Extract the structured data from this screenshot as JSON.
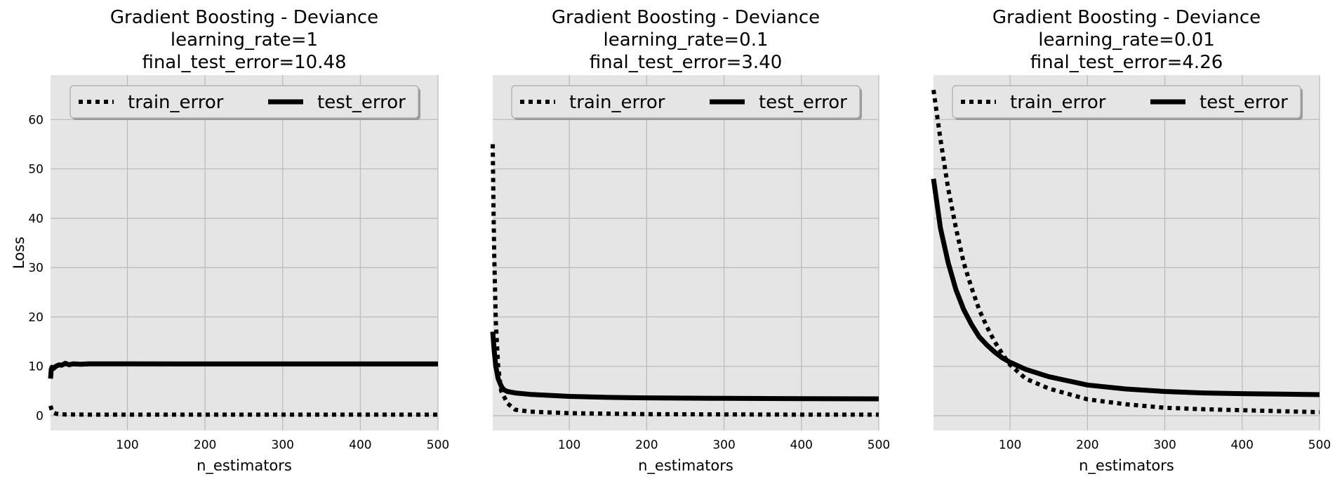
{
  "chart_data": [
    {
      "type": "line",
      "title": "Gradient Boosting - Deviance",
      "subtitle_lines": [
        "learning_rate=1",
        "final_test_error=10.48"
      ],
      "xlabel": "n_estimators",
      "ylabel": "Loss",
      "xlim": [
        1,
        500
      ],
      "ylim": [
        -3,
        69
      ],
      "xticks": [
        100,
        200,
        300,
        400,
        500
      ],
      "yticks": [
        0,
        10,
        20,
        30,
        40,
        50,
        60
      ],
      "grid": true,
      "legend": {
        "placement": "top-center",
        "entries": [
          "train_error",
          "test_error"
        ]
      },
      "series": [
        {
          "name": "train_error",
          "style": "dotted",
          "x": [
            1,
            2,
            3,
            5,
            8,
            12,
            20,
            50,
            100,
            200,
            300,
            400,
            500
          ],
          "y": [
            2.0,
            1.4,
            0.9,
            0.6,
            0.4,
            0.3,
            0.25,
            0.2,
            0.2,
            0.2,
            0.2,
            0.2,
            0.2
          ]
        },
        {
          "name": "test_error",
          "style": "solid",
          "x": [
            1,
            2,
            3,
            5,
            8,
            12,
            15,
            20,
            25,
            30,
            40,
            50,
            60,
            100,
            200,
            300,
            400,
            500
          ],
          "y": [
            7.5,
            9.5,
            9.8,
            9.6,
            10.0,
            10.3,
            10.2,
            10.6,
            10.3,
            10.5,
            10.4,
            10.5,
            10.5,
            10.5,
            10.48,
            10.48,
            10.48,
            10.48
          ]
        }
      ]
    },
    {
      "type": "line",
      "title": "Gradient Boosting - Deviance",
      "subtitle_lines": [
        "learning_rate=0.1",
        "final_test_error=3.40"
      ],
      "xlabel": "n_estimators",
      "ylabel": "",
      "xlim": [
        1,
        500
      ],
      "ylim": [
        -3,
        69
      ],
      "xticks": [
        100,
        200,
        300,
        400,
        500
      ],
      "yticks": [
        0,
        10,
        20,
        30,
        40,
        50,
        60
      ],
      "grid": true,
      "legend": {
        "placement": "top-center",
        "entries": [
          "train_error",
          "test_error"
        ]
      },
      "series": [
        {
          "name": "train_error",
          "style": "dotted",
          "x": [
            1,
            2,
            3,
            5,
            8,
            12,
            20,
            30,
            50,
            100,
            200,
            300,
            400,
            500
          ],
          "y": [
            55,
            42,
            32,
            19,
            10,
            5,
            2.5,
            1.2,
            0.8,
            0.5,
            0.3,
            0.25,
            0.2,
            0.2
          ]
        },
        {
          "name": "test_error",
          "style": "solid",
          "x": [
            1,
            2,
            3,
            5,
            8,
            12,
            15,
            20,
            30,
            50,
            100,
            150,
            200,
            300,
            400,
            500
          ],
          "y": [
            17,
            15,
            13,
            10,
            7.5,
            6,
            5.3,
            4.9,
            4.6,
            4.3,
            3.9,
            3.7,
            3.6,
            3.5,
            3.45,
            3.4
          ]
        }
      ]
    },
    {
      "type": "line",
      "title": "Gradient Boosting - Deviance",
      "subtitle_lines": [
        "learning_rate=0.01",
        "final_test_error=4.26"
      ],
      "xlabel": "n_estimators",
      "ylabel": "",
      "xlim": [
        1,
        500
      ],
      "ylim": [
        -3,
        69
      ],
      "xticks": [
        100,
        200,
        300,
        400,
        500
      ],
      "yticks": [
        0,
        10,
        20,
        30,
        40,
        50,
        60
      ],
      "grid": true,
      "legend": {
        "placement": "top-center",
        "entries": [
          "train_error",
          "test_error"
        ]
      },
      "series": [
        {
          "name": "train_error",
          "style": "dotted",
          "x": [
            1,
            10,
            20,
            30,
            40,
            50,
            60,
            70,
            80,
            90,
            100,
            120,
            150,
            200,
            250,
            300,
            350,
            400,
            450,
            500
          ],
          "y": [
            66,
            56,
            46,
            38,
            31,
            26,
            21.5,
            18,
            15,
            12.5,
            10.3,
            7.5,
            5.5,
            3.3,
            2.3,
            1.6,
            1.3,
            1.1,
            0.9,
            0.7
          ]
        },
        {
          "name": "test_error",
          "style": "solid",
          "x": [
            1,
            10,
            20,
            30,
            40,
            50,
            60,
            70,
            80,
            90,
            100,
            120,
            150,
            200,
            250,
            300,
            350,
            400,
            450,
            500
          ],
          "y": [
            48,
            38,
            31,
            25.5,
            21.5,
            18.5,
            16,
            14.3,
            12.9,
            11.7,
            10.8,
            9.4,
            7.9,
            6.2,
            5.4,
            4.9,
            4.6,
            4.45,
            4.35,
            4.26
          ]
        }
      ]
    }
  ]
}
